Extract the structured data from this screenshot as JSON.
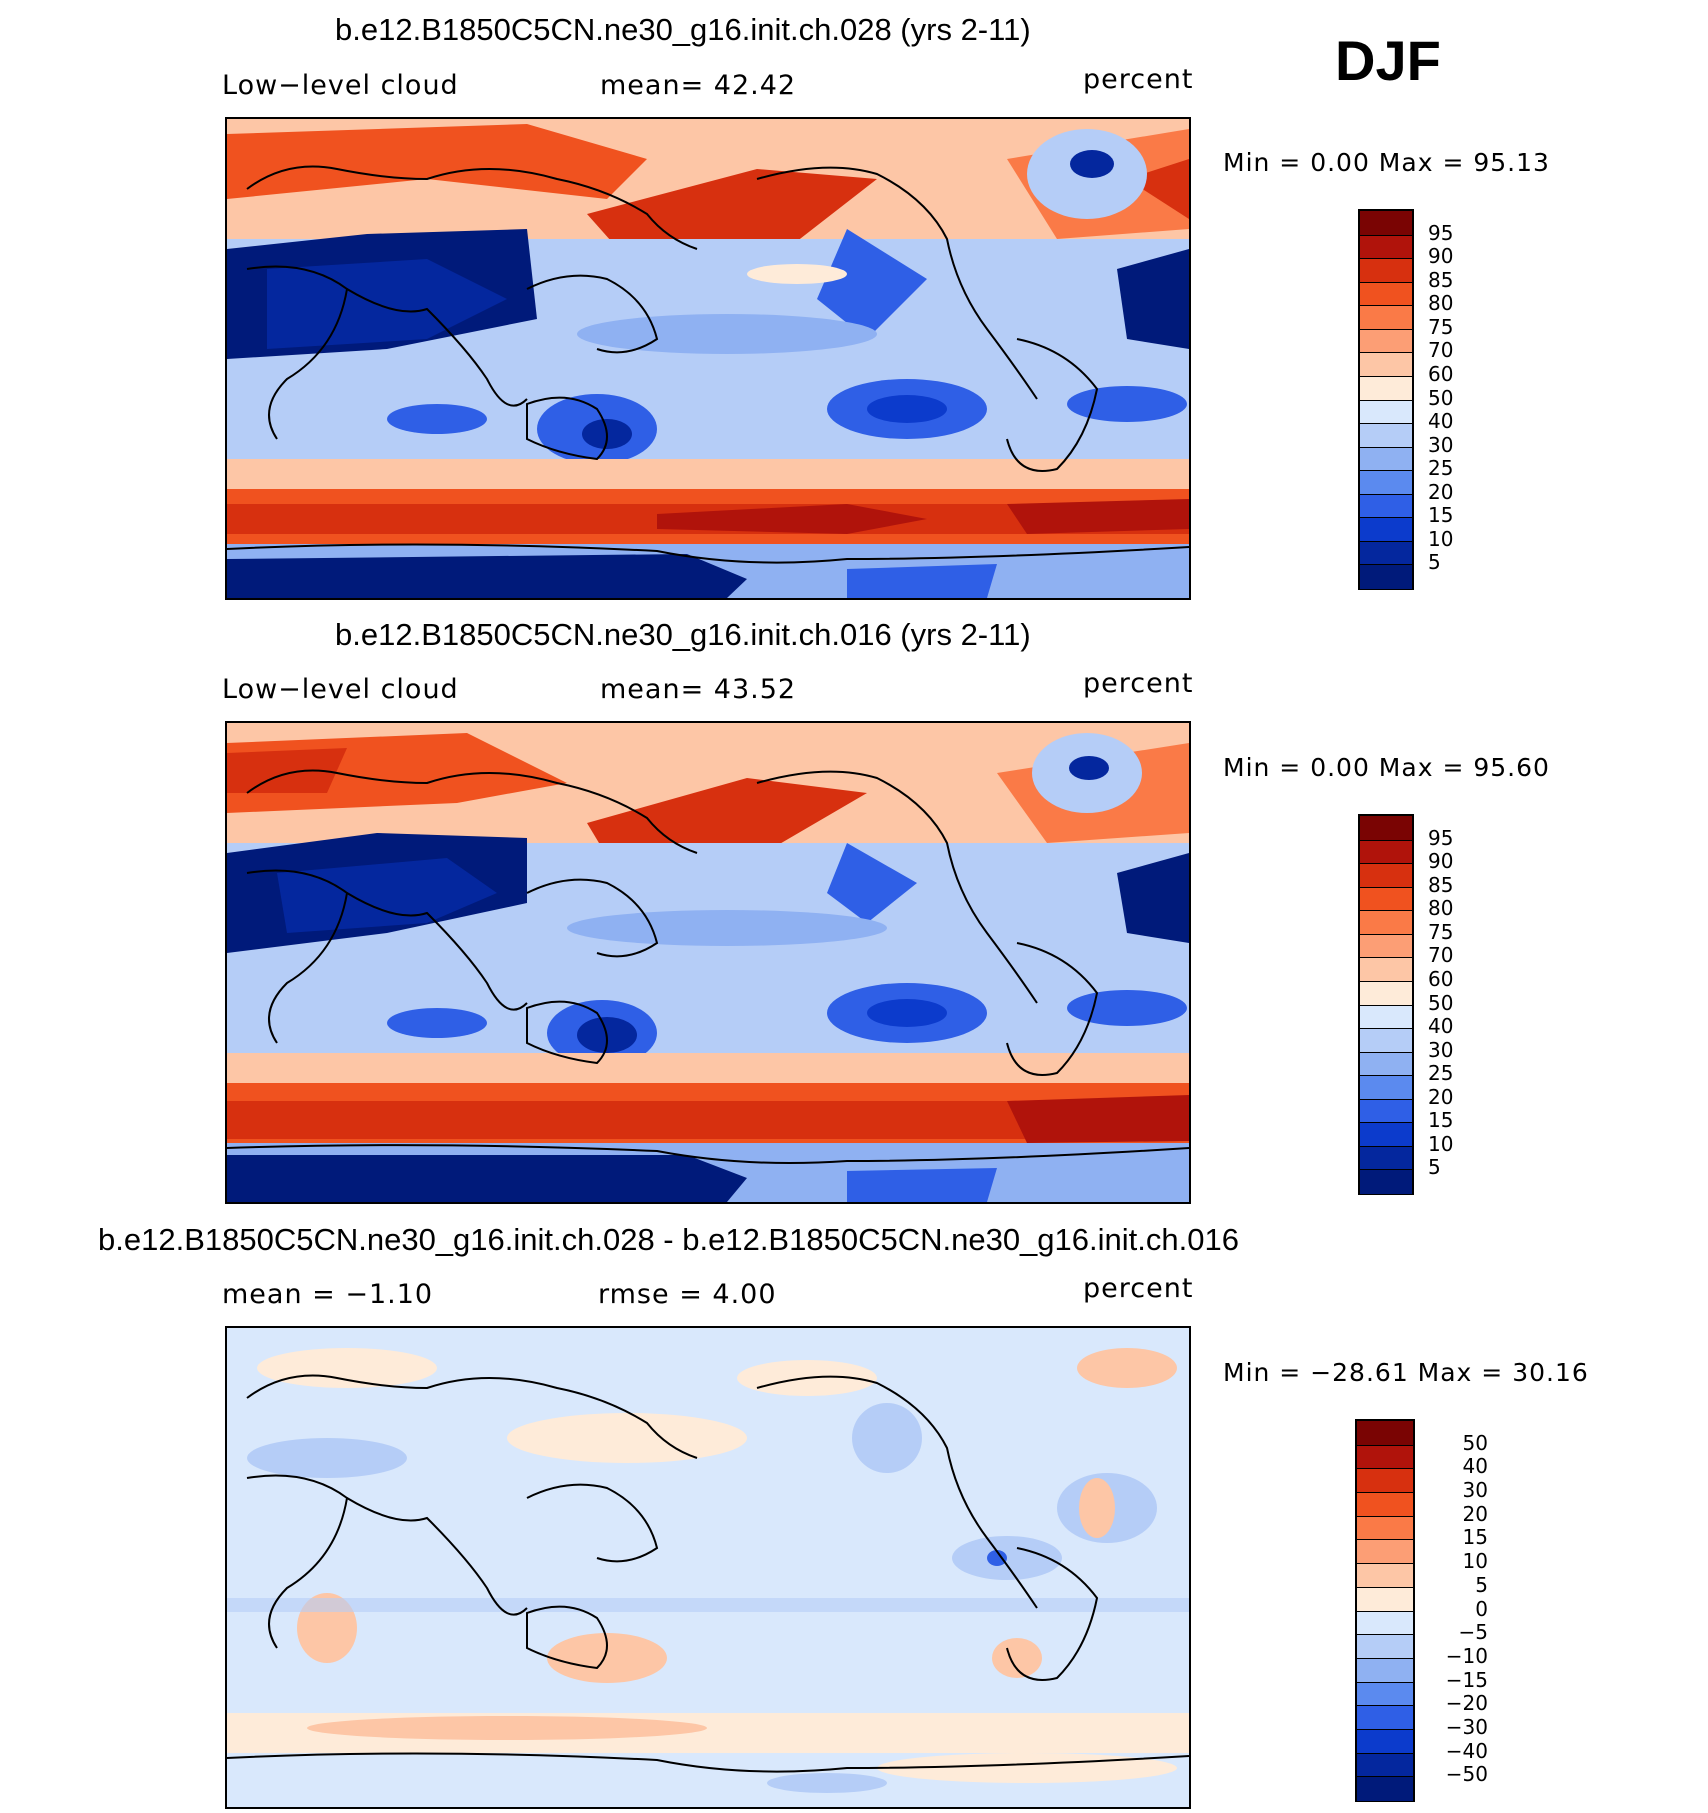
{
  "season": "DJF",
  "panels": [
    {
      "title": "b.e12.B1850C5CN.ne30_g16.init.ch.028 (yrs 2-11)",
      "left_label": "Low−level cloud",
      "mid_label": "mean=   42.42",
      "units": "percent",
      "minmax": "Min =    0.00 Max =   95.13"
    },
    {
      "title": "b.e12.B1850C5CN.ne30_g16.init.ch.016 (yrs 2-11)",
      "left_label": "Low−level cloud",
      "mid_label": "mean=   43.52",
      "units": "percent",
      "minmax": "Min =    0.00 Max =   95.60"
    },
    {
      "title": "b.e12.B1850C5CN.ne30_g16.init.ch.028 - b.e12.B1850C5CN.ne30_g16.init.ch.016",
      "left_label": "mean =   −1.10",
      "mid_label": "rmse =    4.00",
      "units": "percent",
      "minmax": "Min = −28.61 Max =   30.16"
    }
  ],
  "colorbars": {
    "abs": {
      "labels": [
        "95",
        "90",
        "85",
        "80",
        "75",
        "70",
        "60",
        "50",
        "40",
        "30",
        "25",
        "20",
        "15",
        "10",
        "5"
      ],
      "colors": [
        "#7a0403",
        "#b0130b",
        "#d7300f",
        "#f0521f",
        "#fa7a47",
        "#fc9e75",
        "#fdc6a6",
        "#feebd9",
        "#d9e8fc",
        "#b5cdf7",
        "#8fb1f2",
        "#5b8aef",
        "#2f5fe6",
        "#0c3bcc",
        "#04279e",
        "#001a7a"
      ]
    },
    "diff": {
      "labels": [
        "50",
        "40",
        "30",
        "20",
        "15",
        "10",
        "5",
        "0",
        "−5",
        "−10",
        "−15",
        "−20",
        "−30",
        "−40",
        "−50"
      ],
      "colors": [
        "#7a0403",
        "#b0130b",
        "#d7300f",
        "#f0521f",
        "#fa7a47",
        "#fc9e75",
        "#fdc6a6",
        "#feebd9",
        "#d9e8fc",
        "#b5cdf7",
        "#8fb1f2",
        "#5b8aef",
        "#2f5fe6",
        "#0c3bcc",
        "#04279e",
        "#001a7a"
      ]
    }
  }
}
